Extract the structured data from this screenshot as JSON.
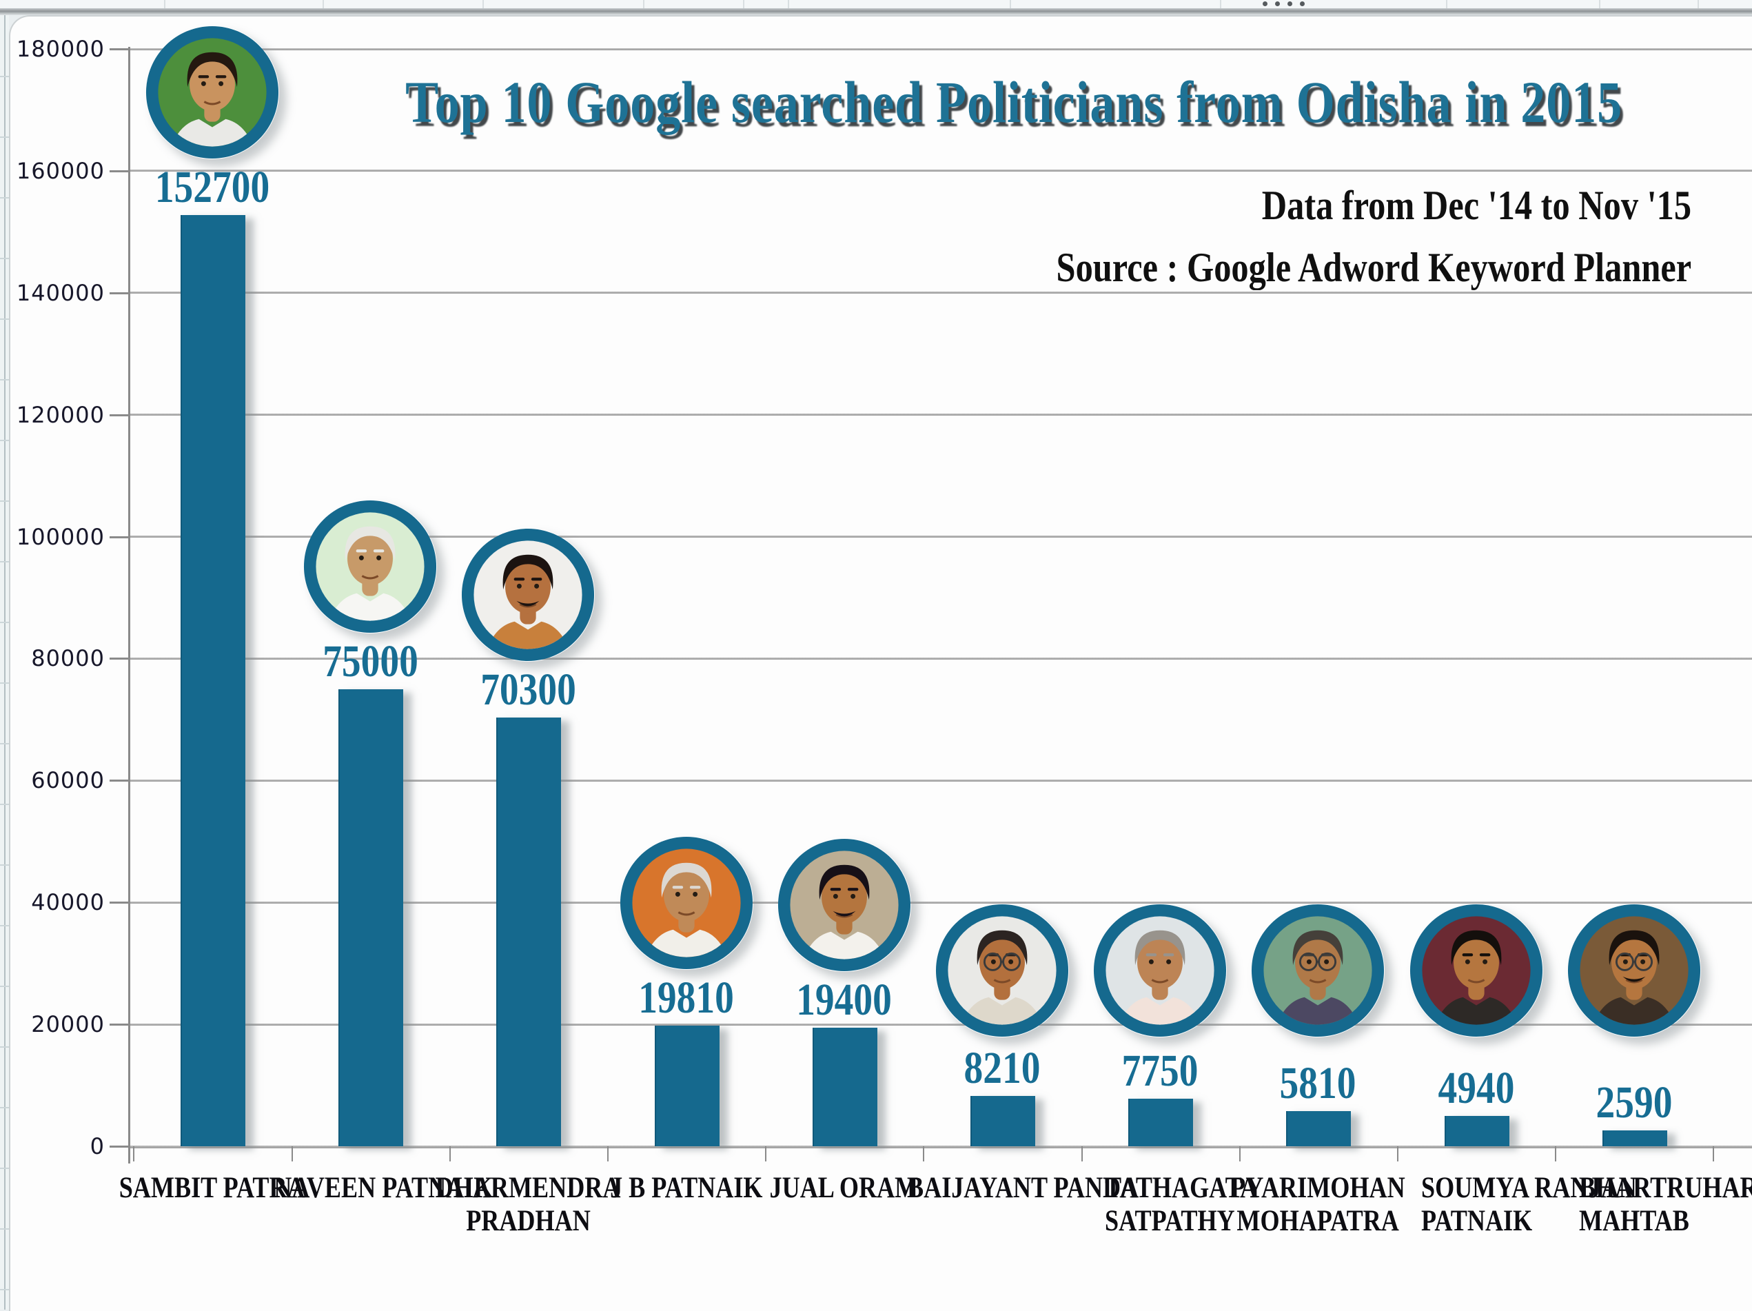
{
  "chart_data": {
    "type": "bar",
    "title": "Top 10 Google searched Politicians from Odisha in 2015",
    "annotations": {
      "date_note": "Data from Dec '14 to Nov '15",
      "source_note": "Source : Google Adword Keyword Planner"
    },
    "categories": [
      "SAMBIT PATRA",
      "NAVEEN PATNAIK",
      "DHARMENDRA PRADHAN",
      "J B PATNAIK",
      "JUAL ORAM",
      "BAIJAYANT PANDA",
      "TATHAGATA SATPATHY",
      "PYARIMOHAN MOHAPATRA",
      "SOUMYA RANJAN PATNAIK",
      "BHARTRUHARI MAHTAB"
    ],
    "category_label_lines": [
      [
        "SAMBIT PATRA"
      ],
      [
        "NAVEEN PATNAIK"
      ],
      [
        "DHARMENDRA",
        "PRADHAN"
      ],
      [
        "J B PATNAIK"
      ],
      [
        "JUAL ORAM"
      ],
      [
        "BAIJAYANT PANDA"
      ],
      [
        "TATHAGATA",
        "SATPATHY"
      ],
      [
        "PYARIMOHAN",
        "MOHAPATRA"
      ],
      [
        "SOUMYA RANJAN",
        "PATNAIK"
      ],
      [
        "BHARTRUHARI",
        "MAHTAB"
      ]
    ],
    "category_label_align": [
      "center",
      "center",
      "center",
      "center",
      "center",
      "center",
      "left",
      "center",
      "left",
      "left"
    ],
    "values": [
      152700,
      75000,
      70300,
      19810,
      19400,
      8210,
      7750,
      5810,
      4940,
      2590
    ],
    "ylim": [
      0,
      180000
    ],
    "ytick_interval": 20000,
    "ytick_labels": [
      "180000",
      "160000",
      "140000",
      "120000",
      "100000",
      "80000",
      "60000",
      "40000",
      "20000",
      "0"
    ],
    "grid": true,
    "legend": "none",
    "bar_color": "#15698e",
    "value_label_color": "#176d93",
    "grid_color": "#9b9b9b",
    "axis_color": "#8a8a8a",
    "title_color": "#1e7295",
    "photos": [
      {
        "person": "Sambit Patra",
        "bg": "#4d8f3c",
        "skin": "#c9935f",
        "hair": "#241810",
        "shirt": "#e9e9e6",
        "glasses": false,
        "mustache": false
      },
      {
        "person": "Naveen Patnaik",
        "bg": "#d9edd2",
        "skin": "#c79a69",
        "hair": "#e7e7e2",
        "shirt": "#f6f6f3",
        "glasses": false,
        "mustache": false
      },
      {
        "person": "Dharmendra Pradhan",
        "bg": "#f0efec",
        "skin": "#b5713f",
        "hair": "#1c1310",
        "shirt": "#c8803c",
        "glasses": false,
        "mustache": true
      },
      {
        "person": "J B Patnaik",
        "bg": "#d8752c",
        "skin": "#c08a58",
        "hair": "#dcd8d2",
        "shirt": "#f1efe9",
        "glasses": false,
        "mustache": false
      },
      {
        "person": "Jual Oram",
        "bg": "#bcae94",
        "skin": "#b4753e",
        "hair": "#171017",
        "shirt": "#f3f1ec",
        "glasses": false,
        "mustache": true
      },
      {
        "person": "Baijayant Panda",
        "bg": "#e9e9e6",
        "skin": "#b3703d",
        "hair": "#2c2421",
        "shirt": "#ded8cb",
        "glasses": true,
        "mustache": false
      },
      {
        "person": "Tathagata Satpathy",
        "bg": "#dfe4e6",
        "skin": "#bd8455",
        "hair": "#98938c",
        "shirt": "#f2e2da",
        "glasses": false,
        "mustache": false
      },
      {
        "person": "Pyarimohan Mohapatra",
        "bg": "#76a287",
        "skin": "#b07948",
        "hair": "#45403a",
        "shirt": "#4c4862",
        "glasses": true,
        "mustache": false
      },
      {
        "person": "Soumya Ranjan Patnaik",
        "bg": "#6b2a33",
        "skin": "#b5763f",
        "hair": "#140f0c",
        "shirt": "#2d2926",
        "glasses": false,
        "mustache": false
      },
      {
        "person": "Bhartruhari Mahtab",
        "bg": "#7a5a38",
        "skin": "#b5763f",
        "hair": "#1a120d",
        "shirt": "#3a2e25",
        "glasses": true,
        "mustache": true
      }
    ]
  }
}
